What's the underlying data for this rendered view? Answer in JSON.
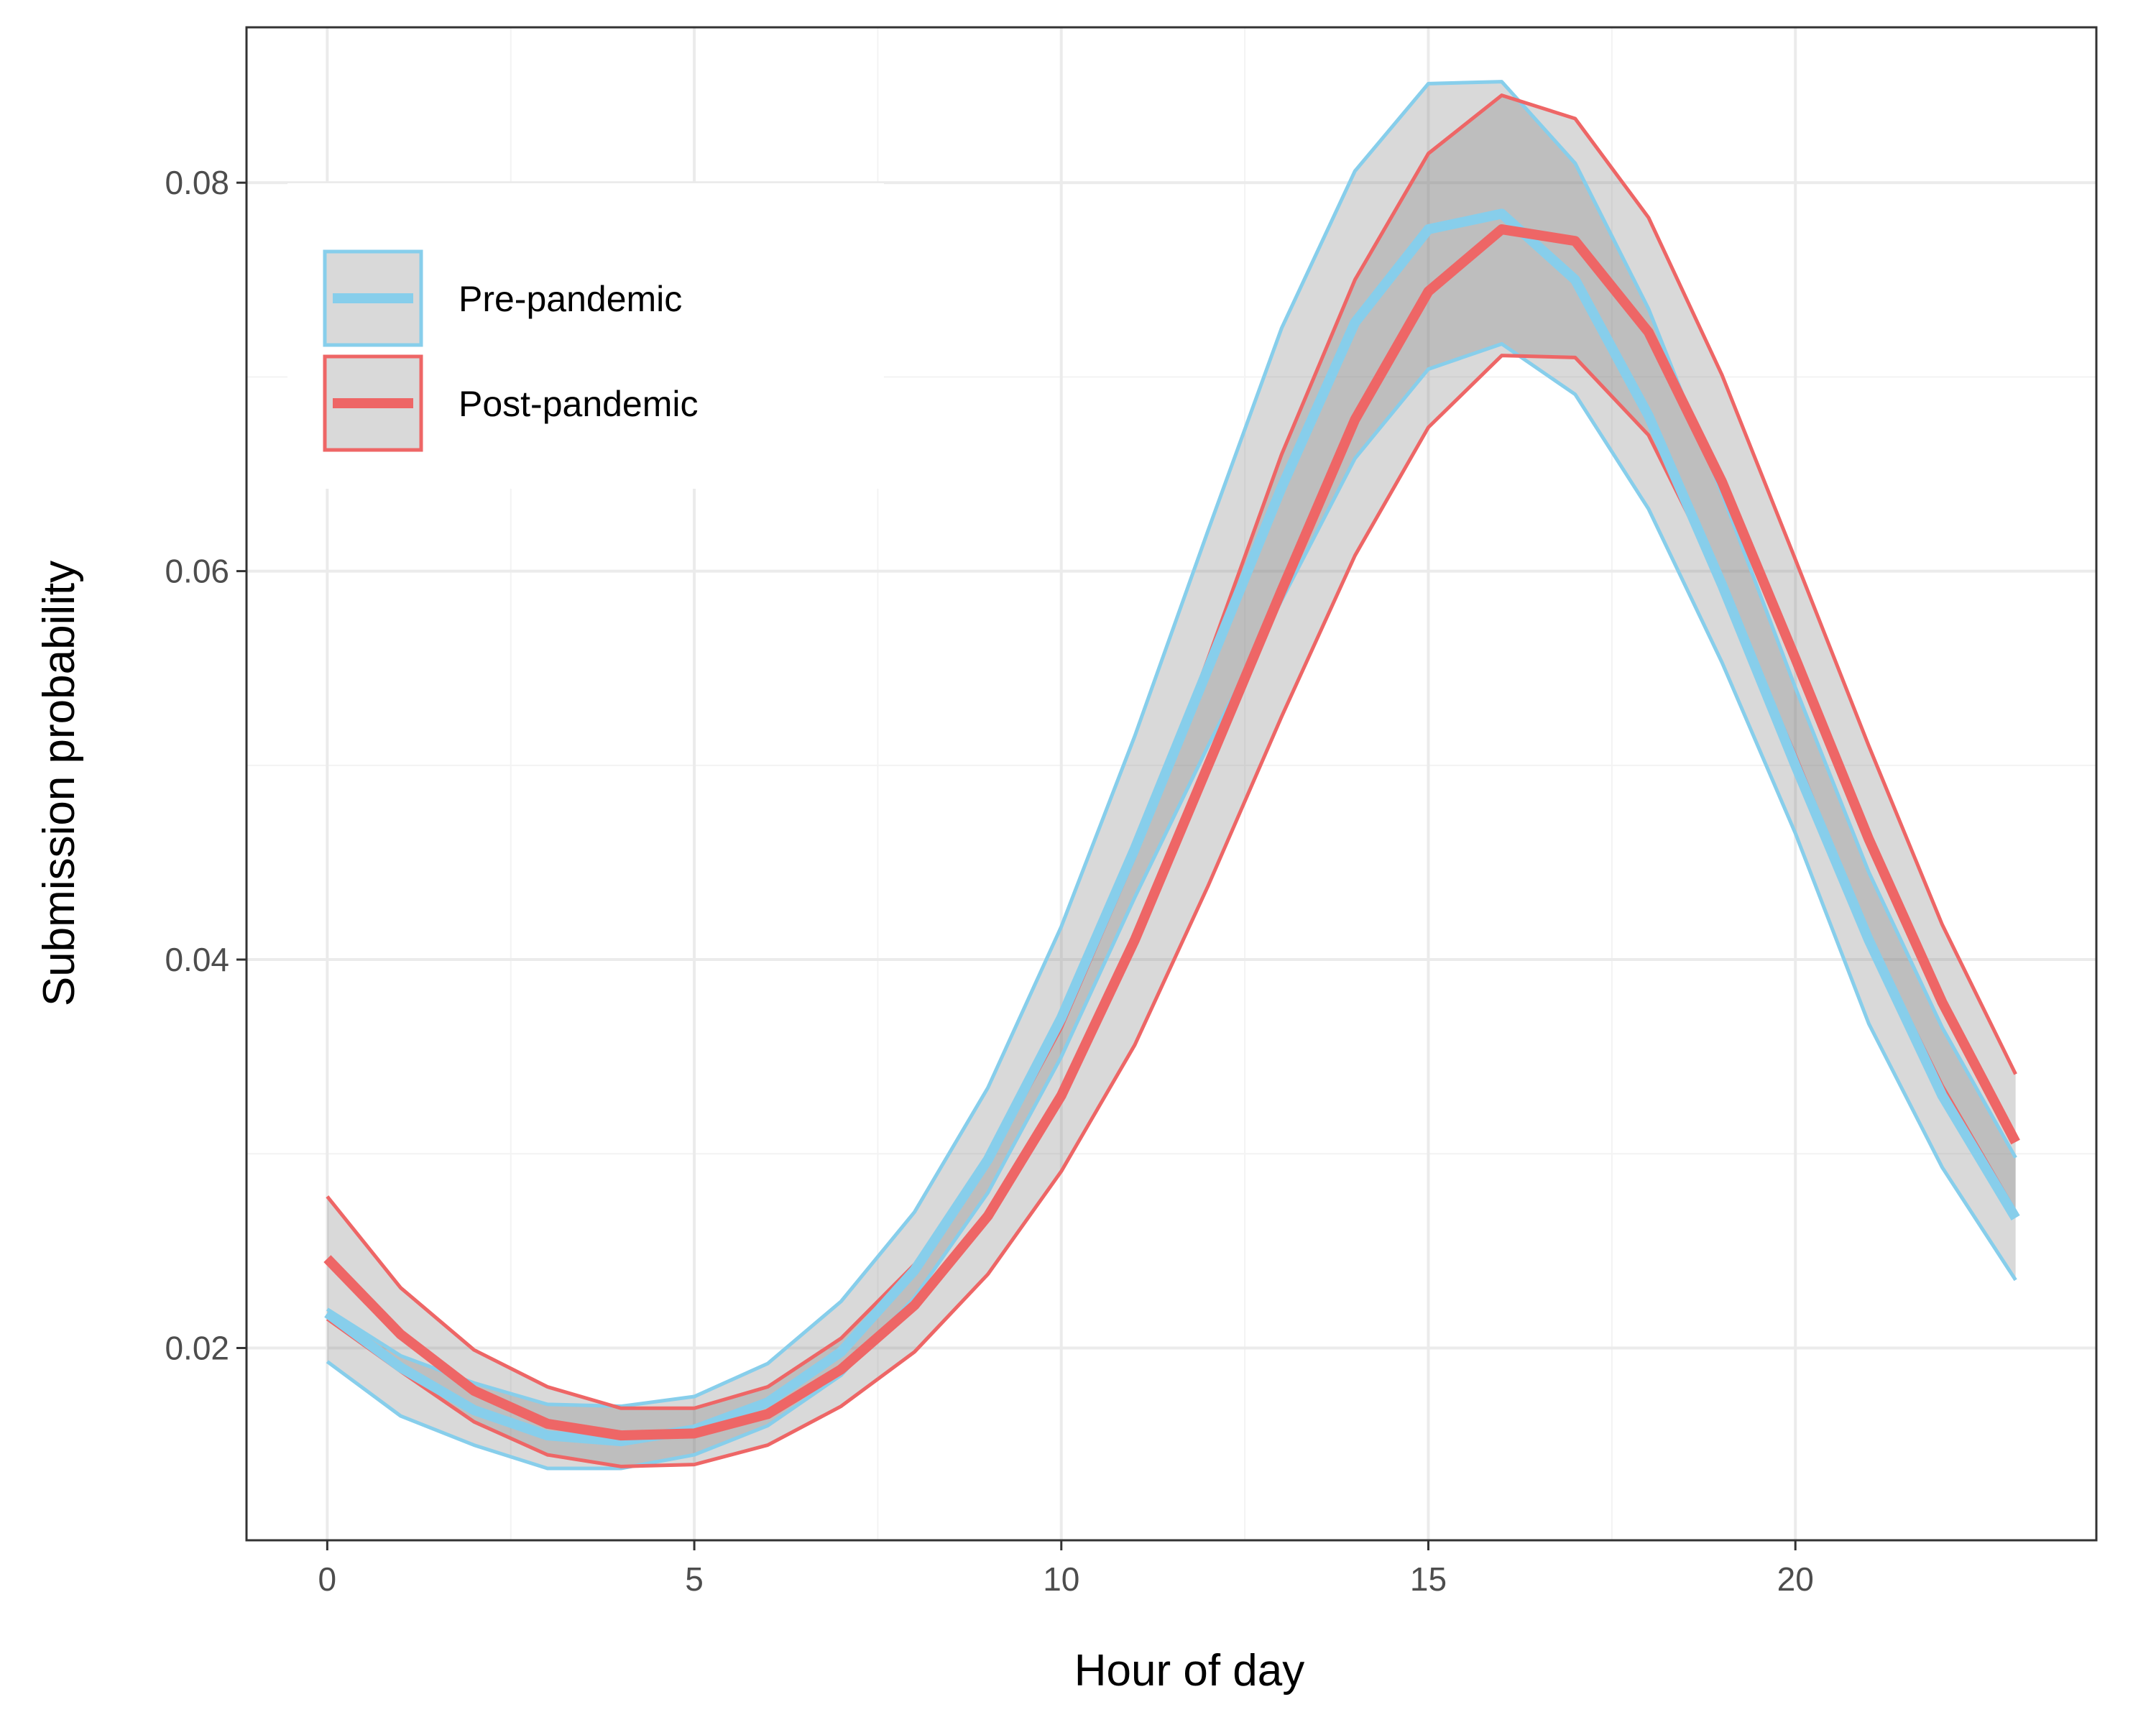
{
  "chart_data": {
    "type": "line",
    "title": "",
    "xlabel": "Hour of day",
    "ylabel": "Submission probability",
    "xlim": [
      -1.1,
      24.1
    ],
    "ylim": [
      0.0101,
      0.088
    ],
    "x_ticks": [
      0,
      5,
      10,
      15,
      20
    ],
    "x_tick_labels": [
      "0",
      "5",
      "10",
      "15",
      "20"
    ],
    "y_ticks": [
      0.02,
      0.04,
      0.06,
      0.08
    ],
    "y_tick_labels": [
      "0.02",
      "0.04",
      "0.06",
      "0.08"
    ],
    "grid": true,
    "legend_position": "top-left",
    "x": [
      0,
      1,
      2,
      3,
      4,
      5,
      6,
      7,
      8,
      9,
      10,
      11,
      12,
      13,
      14,
      15,
      16,
      17,
      18,
      19,
      20,
      21,
      22,
      23
    ],
    "series": [
      {
        "name": "Pre-pandemic",
        "color": "#87CEEB",
        "values": [
          0.0218,
          0.019,
          0.0168,
          0.0155,
          0.0152,
          0.0158,
          0.0172,
          0.0198,
          0.024,
          0.0297,
          0.037,
          0.0457,
          0.055,
          0.0643,
          0.0728,
          0.0776,
          0.0784,
          0.075,
          0.068,
          0.0593,
          0.05,
          0.041,
          0.033,
          0.0267
        ],
        "lower": [
          0.0193,
          0.0165,
          0.015,
          0.0138,
          0.0138,
          0.0145,
          0.016,
          0.0186,
          0.0226,
          0.028,
          0.035,
          0.0432,
          0.051,
          0.0585,
          0.0658,
          0.0704,
          0.0717,
          0.0691,
          0.0632,
          0.0553,
          0.0465,
          0.0367,
          0.0293,
          0.0235
        ],
        "upper": [
          0.022,
          0.0196,
          0.0182,
          0.0171,
          0.017,
          0.0175,
          0.0192,
          0.0224,
          0.027,
          0.0334,
          0.0417,
          0.0515,
          0.0621,
          0.0725,
          0.0806,
          0.0851,
          0.0852,
          0.081,
          0.0735,
          0.064,
          0.054,
          0.0445,
          0.0365,
          0.0298
        ]
      },
      {
        "name": "Post-pandemic",
        "color": "#EE6666",
        "values": [
          0.0246,
          0.0207,
          0.0178,
          0.0161,
          0.0155,
          0.0156,
          0.0166,
          0.0189,
          0.0222,
          0.0268,
          0.033,
          0.041,
          0.05,
          0.059,
          0.0678,
          0.0744,
          0.0776,
          0.077,
          0.0723,
          0.0646,
          0.0555,
          0.0462,
          0.0378,
          0.0306
        ],
        "lower": [
          0.0215,
          0.0188,
          0.0162,
          0.0145,
          0.0139,
          0.014,
          0.015,
          0.017,
          0.0198,
          0.0238,
          0.0291,
          0.0356,
          0.0438,
          0.0525,
          0.0608,
          0.0674,
          0.0711,
          0.071,
          0.067,
          0.0594,
          0.0505,
          0.0412,
          0.0335,
          0.027
        ],
        "upper": [
          0.0278,
          0.0231,
          0.0199,
          0.018,
          0.0169,
          0.0169,
          0.018,
          0.0205,
          0.0243,
          0.0295,
          0.0365,
          0.0453,
          0.0555,
          0.066,
          0.075,
          0.0815,
          0.0845,
          0.0833,
          0.0782,
          0.0701,
          0.0606,
          0.051,
          0.0418,
          0.0341
        ]
      }
    ]
  }
}
